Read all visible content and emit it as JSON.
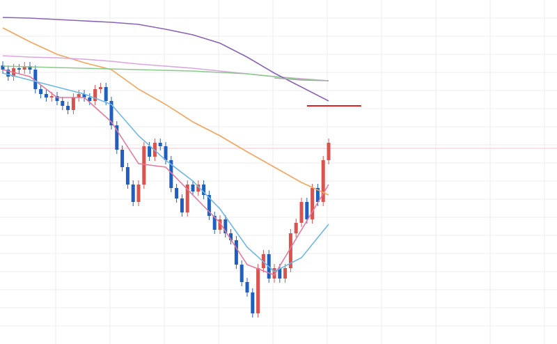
{
  "chart_data": {
    "type": "candlestick",
    "ylim": [
      0,
      494
    ],
    "grid": true,
    "up_color": "#d9534f",
    "down_color": "#1f5fbf",
    "x": [
      0,
      1,
      2,
      3,
      4,
      5,
      6,
      7,
      8,
      9,
      10,
      11,
      12,
      13,
      14,
      15,
      16,
      17,
      18,
      19,
      20,
      21,
      22,
      23,
      24,
      25,
      26,
      27,
      28,
      29,
      30,
      31,
      32,
      33,
      34,
      35,
      36,
      37,
      38,
      39,
      40,
      41,
      42,
      43,
      44,
      45,
      46,
      47,
      48,
      49,
      50,
      51,
      52,
      53,
      54,
      55,
      56,
      57,
      58,
      59,
      60
    ],
    "open": [
      400,
      394,
      384,
      396,
      394,
      399,
      394,
      366,
      359,
      354,
      356,
      349,
      342,
      336,
      354,
      359,
      354,
      349,
      366,
      369,
      349,
      314,
      279,
      254,
      229,
      204,
      229,
      284,
      269,
      289,
      284,
      264,
      224,
      209,
      189,
      229,
      219,
      229,
      214,
      184,
      164,
      179,
      159,
      149,
      114,
      89,
      74,
      44,
      109,
      129,
      94,
      109,
      94,
      109,
      159,
      174,
      204,
      179,
      224,
      204,
      264
    ],
    "high": [
      406,
      400,
      402,
      402,
      405,
      405,
      400,
      372,
      365,
      362,
      362,
      355,
      348,
      360,
      365,
      365,
      360,
      372,
      375,
      375,
      355,
      320,
      285,
      260,
      235,
      235,
      290,
      290,
      295,
      295,
      290,
      270,
      230,
      215,
      235,
      235,
      235,
      235,
      220,
      190,
      185,
      185,
      165,
      155,
      120,
      95,
      80,
      115,
      135,
      135,
      115,
      115,
      115,
      165,
      180,
      210,
      210,
      230,
      230,
      270,
      295
    ],
    "low": [
      388,
      378,
      378,
      388,
      388,
      388,
      360,
      353,
      348,
      348,
      343,
      336,
      330,
      330,
      348,
      348,
      343,
      343,
      360,
      343,
      308,
      273,
      248,
      223,
      198,
      198,
      223,
      263,
      263,
      278,
      258,
      218,
      203,
      183,
      183,
      213,
      213,
      208,
      178,
      158,
      158,
      153,
      143,
      108,
      83,
      68,
      38,
      38,
      103,
      88,
      88,
      88,
      88,
      103,
      153,
      168,
      173,
      173,
      198,
      198,
      258
    ],
    "close": [
      394,
      384,
      396,
      394,
      399,
      394,
      366,
      359,
      354,
      356,
      349,
      342,
      336,
      354,
      359,
      354,
      349,
      366,
      369,
      349,
      314,
      279,
      254,
      229,
      204,
      229,
      284,
      269,
      289,
      284,
      264,
      224,
      209,
      189,
      229,
      219,
      229,
      214,
      184,
      164,
      179,
      159,
      149,
      114,
      89,
      74,
      44,
      109,
      129,
      94,
      109,
      94,
      109,
      159,
      174,
      204,
      179,
      224,
      204,
      264,
      289
    ],
    "series": [
      {
        "color": "#e8789a",
        "x": [
          0,
          5,
          10,
          15,
          20,
          25,
          30,
          35,
          40,
          45,
          50,
          55,
          60
        ],
        "values": [
          394,
          384,
          354,
          354,
          319,
          259,
          254,
          214,
          174,
          114,
          99,
          164,
          229
        ]
      },
      {
        "color": "#6bb8e8",
        "x": [
          0,
          5,
          10,
          15,
          20,
          25,
          30,
          35,
          40,
          45,
          50,
          55,
          60
        ],
        "values": [
          389,
          379,
          369,
          359,
          344,
          299,
          264,
          234,
          194,
          139,
          104,
          124,
          172
        ]
      },
      {
        "color": "#f5a45a",
        "x": [
          0,
          5,
          10,
          15,
          20,
          25,
          30,
          35,
          40,
          45,
          50,
          55,
          60
        ],
        "values": [
          454,
          434,
          416,
          404,
          394,
          366,
          344,
          319,
          299,
          276,
          254,
          232,
          214
        ]
      },
      {
        "color": "#d9a6e0",
        "x": [
          0,
          5,
          10,
          15,
          20,
          25,
          30,
          35,
          40,
          45,
          50,
          55,
          60
        ],
        "values": [
          414,
          412,
          411,
          409,
          406,
          402,
          399,
          396,
          392,
          388,
          384,
          381,
          378
        ]
      },
      {
        "color": "#8cc98c",
        "x": [
          0,
          5,
          10,
          15,
          20,
          25,
          30,
          35,
          40,
          45,
          50,
          55,
          60
        ],
        "values": [
          399,
          398,
          397,
          396,
          395,
          394,
          393,
          392,
          390,
          388,
          384,
          380,
          378
        ]
      },
      {
        "color": "#8a63b8",
        "x": [
          0,
          5,
          10,
          15,
          20,
          25,
          30,
          35,
          40,
          45,
          50,
          55,
          60
        ],
        "values": [
          469,
          468,
          466,
          464,
          462,
          459,
          452,
          444,
          432,
          412,
          389,
          369,
          349
        ]
      },
      {
        "color": "#aaaaaa",
        "x": [
          50,
          55,
          60
        ],
        "values": [
          382,
          379,
          378
        ]
      }
    ],
    "levels": [
      {
        "value": 342,
        "color": "#e02020",
        "from": 56,
        "to": 66
      },
      {
        "value": 281,
        "color": "#f3c4cf",
        "from": -1,
        "to": 102
      }
    ]
  }
}
